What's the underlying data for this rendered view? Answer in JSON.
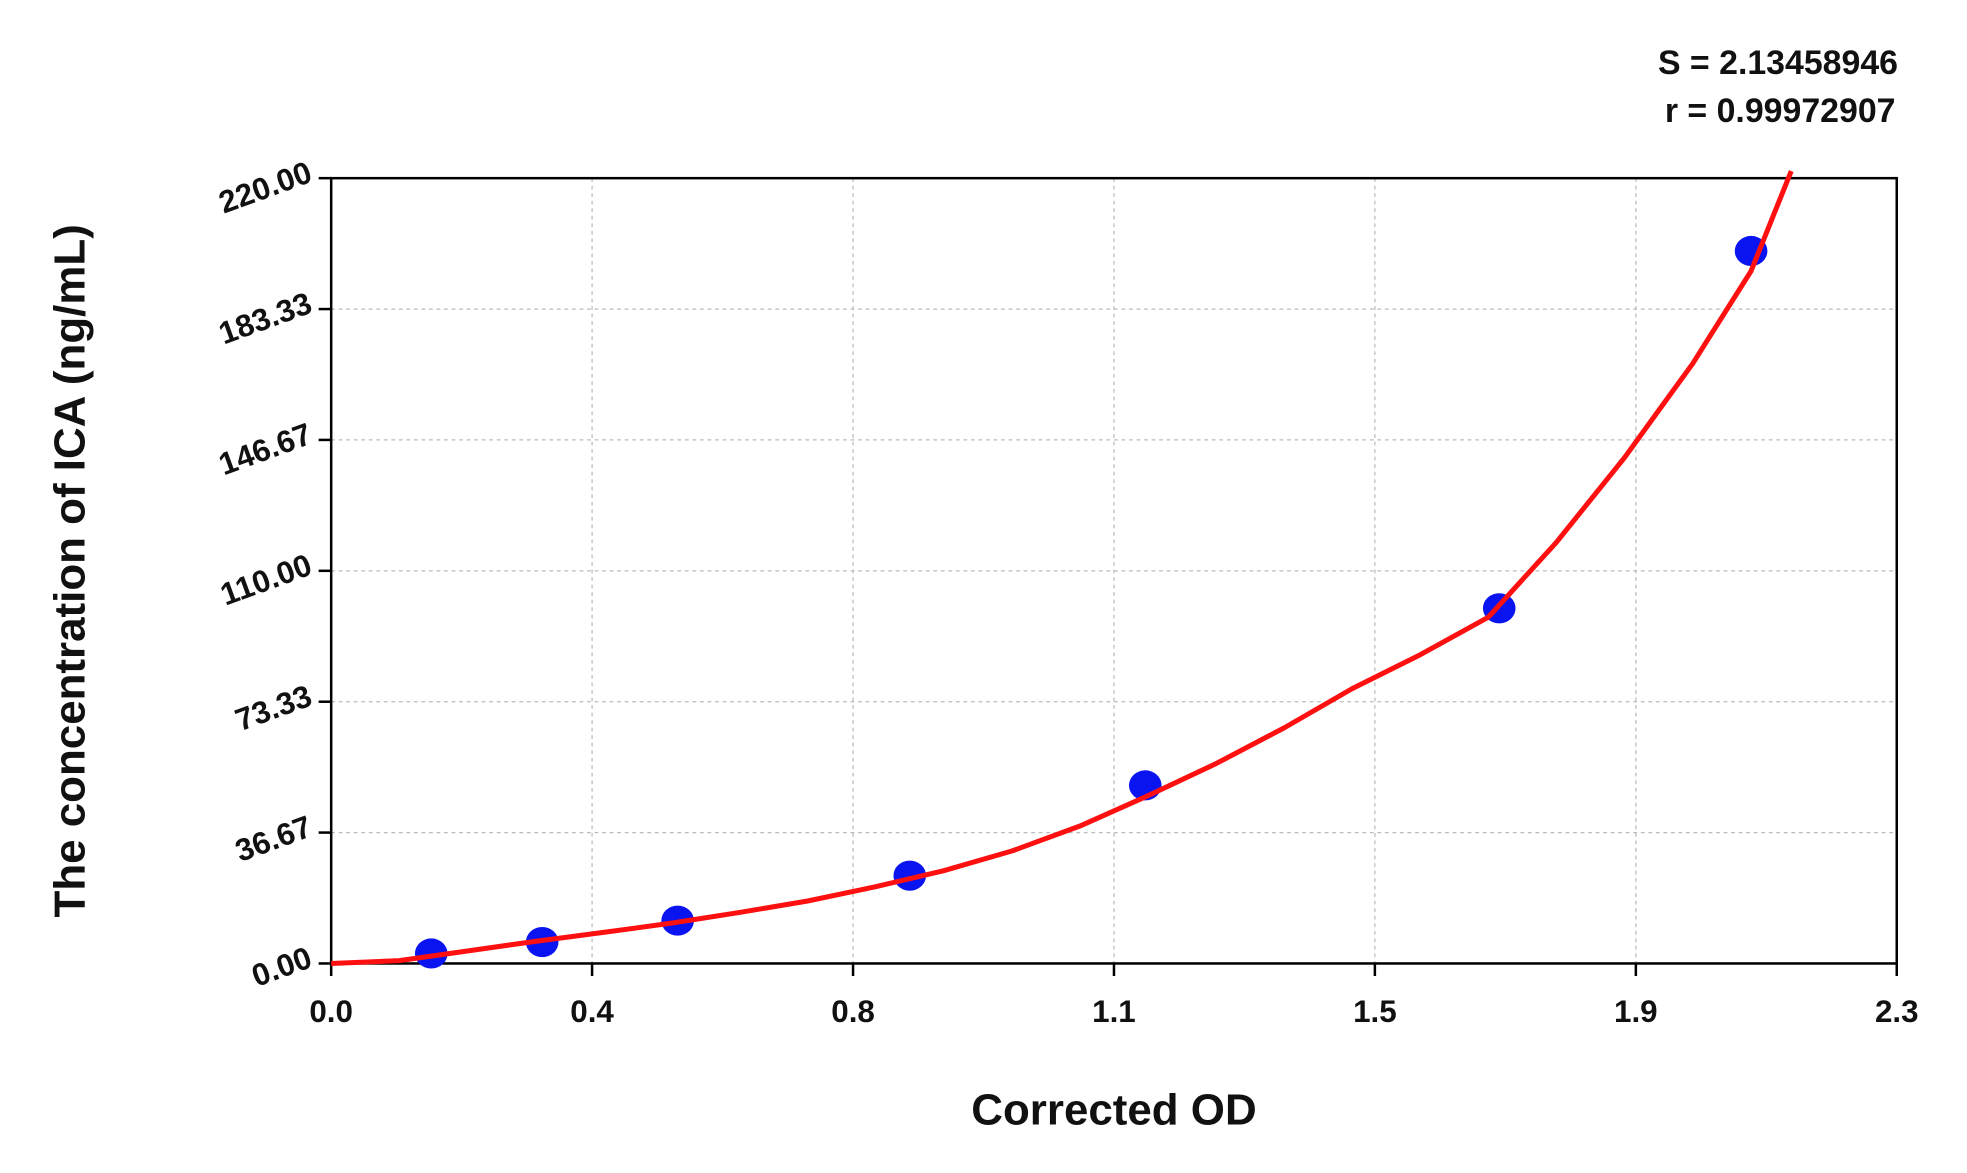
{
  "chart_data": {
    "type": "scatter",
    "annotations": [
      "S = 2.13458946",
      "r = 0.99972907"
    ],
    "xlabel": "Corrected OD",
    "ylabel": "The concentration of ICA (ng/mL)",
    "xlim": [
      0,
      2.3
    ],
    "ylim": [
      0,
      220
    ],
    "xticks": [
      {
        "value": 0,
        "label": "0.0"
      },
      {
        "value": 0.3833,
        "label": "0.4"
      },
      {
        "value": 0.7667,
        "label": "0.8"
      },
      {
        "value": 1.15,
        "label": "1.1"
      },
      {
        "value": 1.5333,
        "label": "1.5"
      },
      {
        "value": 1.9167,
        "label": "1.9"
      },
      {
        "value": 2.3,
        "label": "2.3"
      }
    ],
    "yticks": [
      {
        "value": 0,
        "label": "0.00"
      },
      36.67,
      73.33,
      {
        "value": 110,
        "label": "110.00"
      },
      146.67,
      183.33,
      {
        "value": 220,
        "label": "220.00"
      }
    ],
    "grid": true,
    "series": [
      {
        "type": "scatter",
        "color": "#0a14f0",
        "x": [
          0.147,
          0.31,
          0.509,
          0.85,
          1.196,
          1.716,
          2.086
        ],
        "values": [
          2.8,
          6.0,
          12.0,
          24.6,
          49.9,
          99.5,
          199.6
        ]
      },
      {
        "type": "line",
        "color": "#ff1010",
        "x": [
          0,
          0.1,
          0.2,
          0.3,
          0.4,
          0.5,
          0.6,
          0.7,
          0.8,
          0.9,
          1.0,
          1.1,
          1.2,
          1.3,
          1.4,
          1.5,
          1.6,
          1.7,
          1.8,
          1.9,
          2.0,
          2.086,
          2.145
        ],
        "values": [
          0,
          0.8,
          3.5,
          6.2,
          8.7,
          11.3,
          14.3,
          17.5,
          21.5,
          26,
          31.5,
          38.5,
          47,
          56,
          66,
          77,
          86.5,
          97,
          118,
          141.7,
          168,
          194,
          222
        ]
      }
    ]
  }
}
